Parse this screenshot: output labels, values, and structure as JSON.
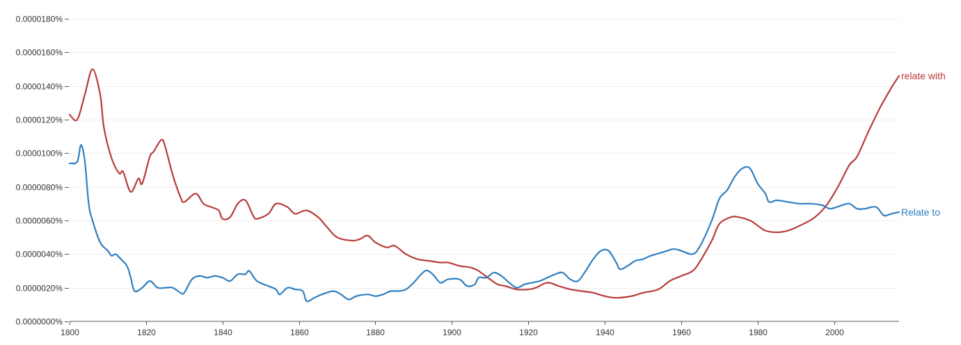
{
  "chart_data": {
    "type": "line",
    "title": "",
    "xlabel": "",
    "ylabel": "",
    "xlim": [
      1800,
      2017
    ],
    "ylim": [
      0,
      1.8e-05
    ],
    "grid": true,
    "x_ticks": [
      1800,
      1820,
      1840,
      1860,
      1880,
      1900,
      1920,
      1940,
      1960,
      1980,
      2000
    ],
    "x_tick_labels": [
      "1800",
      "1820",
      "1840",
      "1860",
      "1880",
      "1900",
      "1920",
      "1940",
      "1960",
      "1980",
      "2000"
    ],
    "y_ticks": [
      0,
      2e-06,
      4e-06,
      6e-06,
      8e-06,
      1e-05,
      1.2e-05,
      1.4e-05,
      1.6e-05,
      1.8e-05
    ],
    "y_tick_labels": [
      "0.0000000%",
      "0.0000020%",
      "0.0000040%",
      "0.0000060%",
      "0.0000080%",
      "0.0000100%",
      "0.0000120%",
      "0.0000140%",
      "0.0000160%",
      "0.0000180%"
    ],
    "series": [
      {
        "name": "relate with",
        "label": "relate with",
        "color": "#b83a3a",
        "points": [
          [
            1800,
            1.23e-05
          ],
          [
            1802,
            1.2e-05
          ],
          [
            1804,
            1.35e-05
          ],
          [
            1806,
            1.5e-05
          ],
          [
            1808,
            1.35e-05
          ],
          [
            1809,
            1.15e-05
          ],
          [
            1811,
            9.7e-06
          ],
          [
            1813,
            8.8e-06
          ],
          [
            1814,
            8.9e-06
          ],
          [
            1816,
            7.7e-06
          ],
          [
            1818,
            8.5e-06
          ],
          [
            1819,
            8.2e-06
          ],
          [
            1821,
            9.8e-06
          ],
          [
            1822,
            1.01e-05
          ],
          [
            1824,
            1.08e-05
          ],
          [
            1825,
            1.04e-05
          ],
          [
            1827,
            8.7e-06
          ],
          [
            1829,
            7.4e-06
          ],
          [
            1830,
            7.1e-06
          ],
          [
            1833,
            7.6e-06
          ],
          [
            1835,
            7e-06
          ],
          [
            1837,
            6.8e-06
          ],
          [
            1839,
            6.6e-06
          ],
          [
            1840,
            6.1e-06
          ],
          [
            1842,
            6.2e-06
          ],
          [
            1844,
            7e-06
          ],
          [
            1846,
            7.2e-06
          ],
          [
            1848,
            6.3e-06
          ],
          [
            1849,
            6.1e-06
          ],
          [
            1852,
            6.4e-06
          ],
          [
            1854,
            7e-06
          ],
          [
            1857,
            6.8e-06
          ],
          [
            1859,
            6.4e-06
          ],
          [
            1862,
            6.6e-06
          ],
          [
            1865,
            6.2e-06
          ],
          [
            1867,
            5.7e-06
          ],
          [
            1870,
            5e-06
          ],
          [
            1874,
            4.8e-06
          ],
          [
            1876,
            4.9e-06
          ],
          [
            1878,
            5.1e-06
          ],
          [
            1880,
            4.7e-06
          ],
          [
            1883,
            4.4e-06
          ],
          [
            1885,
            4.5e-06
          ],
          [
            1888,
            4e-06
          ],
          [
            1891,
            3.7e-06
          ],
          [
            1894,
            3.6e-06
          ],
          [
            1897,
            3.5e-06
          ],
          [
            1899,
            3.5e-06
          ],
          [
            1902,
            3.3e-06
          ],
          [
            1905,
            3.2e-06
          ],
          [
            1907,
            3e-06
          ],
          [
            1910,
            2.5e-06
          ],
          [
            1912,
            2.2e-06
          ],
          [
            1914,
            2.1e-06
          ],
          [
            1917,
            1.9e-06
          ],
          [
            1920,
            1.9e-06
          ],
          [
            1922,
            2e-06
          ],
          [
            1925,
            2.3e-06
          ],
          [
            1928,
            2.1e-06
          ],
          [
            1931,
            1.9e-06
          ],
          [
            1934,
            1.8e-06
          ],
          [
            1937,
            1.7e-06
          ],
          [
            1940,
            1.5e-06
          ],
          [
            1943,
            1.4e-06
          ],
          [
            1947,
            1.5e-06
          ],
          [
            1950,
            1.7e-06
          ],
          [
            1954,
            1.9e-06
          ],
          [
            1957,
            2.4e-06
          ],
          [
            1960,
            2.7e-06
          ],
          [
            1963,
            3e-06
          ],
          [
            1965,
            3.6e-06
          ],
          [
            1968,
            4.8e-06
          ],
          [
            1970,
            5.8e-06
          ],
          [
            1973,
            6.2e-06
          ],
          [
            1975,
            6.2e-06
          ],
          [
            1978,
            6e-06
          ],
          [
            1980,
            5.7e-06
          ],
          [
            1982,
            5.4e-06
          ],
          [
            1985,
            5.3e-06
          ],
          [
            1988,
            5.4e-06
          ],
          [
            1992,
            5.8e-06
          ],
          [
            1995,
            6.2e-06
          ],
          [
            1998,
            6.9e-06
          ],
          [
            2001,
            8e-06
          ],
          [
            2004,
            9.3e-06
          ],
          [
            2006,
            9.8e-06
          ],
          [
            2009,
            1.13e-05
          ],
          [
            2012,
            1.27e-05
          ],
          [
            2015,
            1.39e-05
          ],
          [
            2017,
            1.46e-05
          ]
        ]
      },
      {
        "name": "Relate to",
        "label": "Relate to",
        "color": "#2e7ebf",
        "points": [
          [
            1800,
            9.4e-06
          ],
          [
            1802,
            9.5e-06
          ],
          [
            1803,
            1.05e-05
          ],
          [
            1804,
            9.5e-06
          ],
          [
            1805,
            7e-06
          ],
          [
            1806,
            6e-06
          ],
          [
            1808,
            4.7e-06
          ],
          [
            1810,
            4.2e-06
          ],
          [
            1811,
            3.9e-06
          ],
          [
            1812,
            4e-06
          ],
          [
            1813,
            3.8e-06
          ],
          [
            1815,
            3.3e-06
          ],
          [
            1816,
            2.6e-06
          ],
          [
            1817,
            1.8e-06
          ],
          [
            1819,
            2e-06
          ],
          [
            1821,
            2.4e-06
          ],
          [
            1823,
            2e-06
          ],
          [
            1825,
            2e-06
          ],
          [
            1827,
            2e-06
          ],
          [
            1829,
            1.7e-06
          ],
          [
            1830,
            1.7e-06
          ],
          [
            1832,
            2.5e-06
          ],
          [
            1834,
            2.7e-06
          ],
          [
            1836,
            2.6e-06
          ],
          [
            1838,
            2.7e-06
          ],
          [
            1840,
            2.6e-06
          ],
          [
            1842,
            2.4e-06
          ],
          [
            1844,
            2.8e-06
          ],
          [
            1846,
            2.8e-06
          ],
          [
            1847,
            3e-06
          ],
          [
            1849,
            2.4e-06
          ],
          [
            1852,
            2.1e-06
          ],
          [
            1854,
            1.9e-06
          ],
          [
            1855,
            1.6e-06
          ],
          [
            1857,
            2e-06
          ],
          [
            1859,
            1.9e-06
          ],
          [
            1861,
            1.8e-06
          ],
          [
            1862,
            1.2e-06
          ],
          [
            1864,
            1.4e-06
          ],
          [
            1866,
            1.6e-06
          ],
          [
            1869,
            1.8e-06
          ],
          [
            1871,
            1.6e-06
          ],
          [
            1873,
            1.3e-06
          ],
          [
            1875,
            1.5e-06
          ],
          [
            1878,
            1.6e-06
          ],
          [
            1880,
            1.5e-06
          ],
          [
            1882,
            1.6e-06
          ],
          [
            1884,
            1.8e-06
          ],
          [
            1886,
            1.8e-06
          ],
          [
            1888,
            1.9e-06
          ],
          [
            1890,
            2.3e-06
          ],
          [
            1893,
            3e-06
          ],
          [
            1895,
            2.8e-06
          ],
          [
            1897,
            2.3e-06
          ],
          [
            1899,
            2.5e-06
          ],
          [
            1902,
            2.5e-06
          ],
          [
            1904,
            2.1e-06
          ],
          [
            1906,
            2.2e-06
          ],
          [
            1907,
            2.6e-06
          ],
          [
            1909,
            2.6e-06
          ],
          [
            1911,
            2.9e-06
          ],
          [
            1913,
            2.7e-06
          ],
          [
            1915,
            2.3e-06
          ],
          [
            1917,
            2e-06
          ],
          [
            1919,
            2.2e-06
          ],
          [
            1921,
            2.3e-06
          ],
          [
            1923,
            2.4e-06
          ],
          [
            1925,
            2.6e-06
          ],
          [
            1927,
            2.8e-06
          ],
          [
            1929,
            2.9e-06
          ],
          [
            1931,
            2.5e-06
          ],
          [
            1933,
            2.4e-06
          ],
          [
            1935,
            3e-06
          ],
          [
            1937,
            3.7e-06
          ],
          [
            1939,
            4.2e-06
          ],
          [
            1941,
            4.2e-06
          ],
          [
            1943,
            3.5e-06
          ],
          [
            1944,
            3.1e-06
          ],
          [
            1946,
            3.3e-06
          ],
          [
            1948,
            3.6e-06
          ],
          [
            1950,
            3.7e-06
          ],
          [
            1952,
            3.9e-06
          ],
          [
            1955,
            4.1e-06
          ],
          [
            1958,
            4.3e-06
          ],
          [
            1960,
            4.2e-06
          ],
          [
            1963,
            4e-06
          ],
          [
            1965,
            4.5e-06
          ],
          [
            1968,
            6e-06
          ],
          [
            1970,
            7.3e-06
          ],
          [
            1972,
            7.8e-06
          ],
          [
            1974,
            8.6e-06
          ],
          [
            1976,
            9.1e-06
          ],
          [
            1978,
            9.1e-06
          ],
          [
            1980,
            8.2e-06
          ],
          [
            1982,
            7.6e-06
          ],
          [
            1983,
            7.1e-06
          ],
          [
            1985,
            7.2e-06
          ],
          [
            1988,
            7.1e-06
          ],
          [
            1991,
            7e-06
          ],
          [
            1994,
            7e-06
          ],
          [
            1997,
            6.9e-06
          ],
          [
            1999,
            6.7e-06
          ],
          [
            2002,
            6.9e-06
          ],
          [
            2004,
            7e-06
          ],
          [
            2006,
            6.7e-06
          ],
          [
            2008,
            6.7e-06
          ],
          [
            2011,
            6.8e-06
          ],
          [
            2013,
            6.3e-06
          ],
          [
            2015,
            6.4e-06
          ],
          [
            2017,
            6.5e-06
          ]
        ]
      }
    ]
  }
}
